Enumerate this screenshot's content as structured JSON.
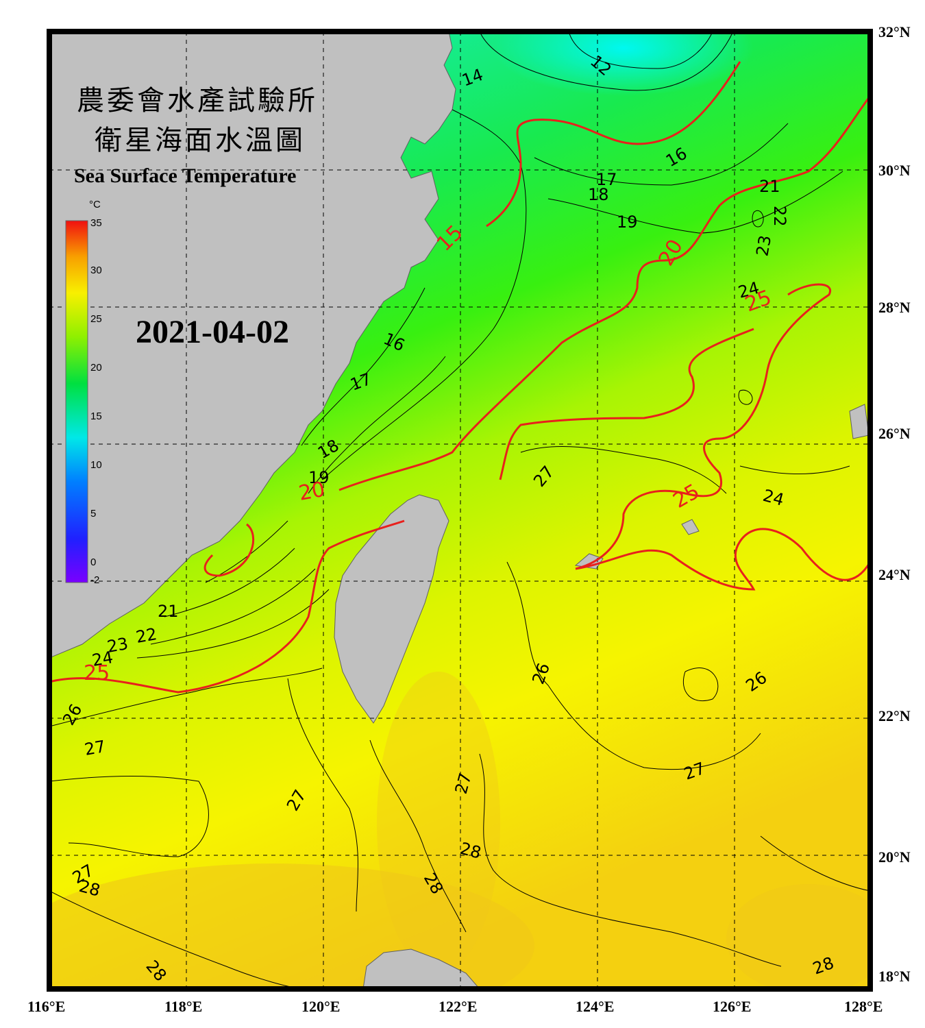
{
  "title_cn_line1": "農委會水產試驗所",
  "title_cn_line2": "衛星海面水溫圖",
  "title_en": "Sea Surface Temperature",
  "date": "2021-04-02",
  "colorbar": {
    "unit": "°C",
    "ticks": [
      "35",
      "30",
      "25",
      "20",
      "15",
      "10",
      "5",
      "0",
      "-2"
    ]
  },
  "lon_labels": [
    "116°E",
    "118°E",
    "120°E",
    "122°E",
    "124°E",
    "126°E",
    "128°E"
  ],
  "lat_labels": [
    "32°N",
    "30°N",
    "28°N",
    "26°N",
    "24°N",
    "22°N",
    "20°N",
    "18°N"
  ],
  "isotherm_labels": {
    "black": [
      "12",
      "14",
      "16",
      "17",
      "18",
      "19",
      "21",
      "22",
      "23",
      "24",
      "16",
      "17",
      "18",
      "19",
      "21",
      "22",
      "23",
      "24",
      "26",
      "27",
      "27",
      "27",
      "26",
      "26",
      "27",
      "28",
      "28",
      "27",
      "28",
      "28",
      "27",
      "24",
      "28"
    ],
    "red": [
      "15",
      "20",
      "20",
      "25",
      "25",
      "25"
    ]
  },
  "colors": {
    "land": "#c0c0c0",
    "isotherm_major": "#e8201c",
    "isotherm_minor": "#000000",
    "frame": "#000000"
  }
}
